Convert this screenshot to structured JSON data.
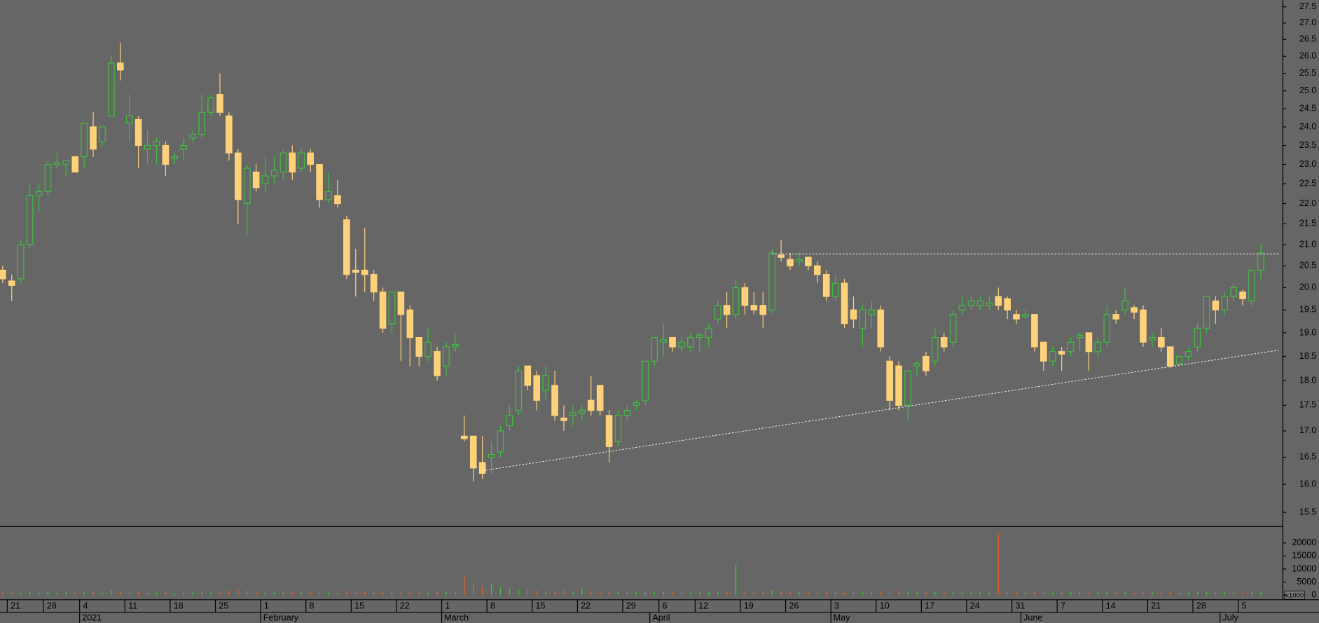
{
  "chart_data": {
    "type": "candlestick",
    "log_scale": true,
    "x": [
      "2020-12-18",
      "2020-12-21",
      "2020-12-22",
      "2020-12-23",
      "2020-12-24",
      "2020-12-28",
      "2020-12-29",
      "2020-12-30",
      "2020-12-31",
      "2021-01-04",
      "2021-01-05",
      "2021-01-06",
      "2021-01-07",
      "2021-01-08",
      "2021-01-11",
      "2021-01-12",
      "2021-01-13",
      "2021-01-14",
      "2021-01-15",
      "2021-01-18",
      "2021-01-19",
      "2021-01-20",
      "2021-01-21",
      "2021-01-22",
      "2021-01-25",
      "2021-01-26",
      "2021-01-27",
      "2021-01-28",
      "2021-01-29",
      "2021-02-01",
      "2021-02-02",
      "2021-02-03",
      "2021-02-04",
      "2021-02-05",
      "2021-02-08",
      "2021-02-09",
      "2021-02-10",
      "2021-02-11",
      "2021-02-12",
      "2021-02-15",
      "2021-02-16",
      "2021-02-17",
      "2021-02-18",
      "2021-02-19",
      "2021-02-22",
      "2021-02-23",
      "2021-02-24",
      "2021-02-25",
      "2021-02-26",
      "2021-03-01",
      "2021-03-02",
      "2021-03-03",
      "2021-03-04",
      "2021-03-05",
      "2021-03-08",
      "2021-03-09",
      "2021-03-10",
      "2021-03-11",
      "2021-03-12",
      "2021-03-15",
      "2021-03-16",
      "2021-03-17",
      "2021-03-18",
      "2021-03-19",
      "2021-03-22",
      "2021-03-23",
      "2021-03-24",
      "2021-03-25",
      "2021-03-26",
      "2021-03-29",
      "2021-03-30",
      "2021-03-31",
      "2021-04-01",
      "2021-04-06",
      "2021-04-07",
      "2021-04-08",
      "2021-04-09",
      "2021-04-12",
      "2021-04-13",
      "2021-04-14",
      "2021-04-15",
      "2021-04-16",
      "2021-04-19",
      "2021-04-20",
      "2021-04-21",
      "2021-04-22",
      "2021-04-23",
      "2021-04-26",
      "2021-04-27",
      "2021-04-28",
      "2021-04-29",
      "2021-04-30",
      "2021-05-03",
      "2021-05-04",
      "2021-05-05",
      "2021-05-06",
      "2021-05-07",
      "2021-05-10",
      "2021-05-11",
      "2021-05-12",
      "2021-05-13",
      "2021-05-14",
      "2021-05-17",
      "2021-05-18",
      "2021-05-19",
      "2021-05-20",
      "2021-05-21",
      "2021-05-24",
      "2021-05-25",
      "2021-05-26",
      "2021-05-27",
      "2021-05-28",
      "2021-05-31",
      "2021-06-01",
      "2021-06-02",
      "2021-06-03",
      "2021-06-04",
      "2021-06-07",
      "2021-06-08",
      "2021-06-09",
      "2021-06-10",
      "2021-06-11",
      "2021-06-14",
      "2021-06-15",
      "2021-06-16",
      "2021-06-17",
      "2021-06-18",
      "2021-06-21",
      "2021-06-22",
      "2021-06-23",
      "2021-06-24",
      "2021-06-25",
      "2021-06-28",
      "2021-06-29",
      "2021-06-30",
      "2021-07-01",
      "2021-07-02",
      "2021-07-05",
      "2021-07-06",
      "2021-07-07"
    ],
    "open": [
      20.4,
      20.15,
      20.2,
      21.0,
      22.2,
      22.3,
      23.0,
      23.0,
      23.2,
      23.2,
      24.0,
      23.6,
      24.3,
      25.8,
      24.1,
      24.2,
      23.4,
      23.5,
      23.5,
      23.15,
      23.4,
      23.7,
      23.8,
      24.4,
      24.9,
      24.3,
      23.3,
      22.0,
      22.8,
      22.5,
      22.7,
      22.8,
      23.3,
      22.9,
      23.3,
      23.0,
      22.1,
      22.2,
      21.6,
      20.4,
      20.4,
      20.3,
      19.9,
      19.2,
      19.9,
      19.5,
      18.9,
      18.5,
      18.6,
      18.3,
      18.7,
      16.9,
      16.9,
      16.4,
      16.5,
      16.6,
      17.1,
      17.4,
      18.3,
      18.1,
      17.8,
      17.9,
      17.25,
      17.3,
      17.35,
      17.6,
      17.9,
      17.3,
      16.8,
      17.3,
      17.5,
      17.6,
      18.4,
      18.8,
      18.9,
      18.7,
      18.7,
      18.9,
      18.9,
      19.3,
      19.6,
      19.4,
      20.0,
      19.6,
      19.6,
      19.5,
      20.75,
      20.65,
      20.6,
      20.7,
      20.5,
      20.3,
      19.8,
      20.1,
      19.5,
      19.1,
      19.4,
      19.5,
      18.4,
      18.3,
      17.5,
      18.3,
      18.5,
      18.4,
      18.9,
      18.8,
      19.5,
      19.6,
      19.6,
      19.6,
      19.8,
      19.75,
      19.4,
      19.35,
      19.4,
      18.8,
      18.4,
      18.6,
      18.6,
      18.9,
      19.0,
      18.6,
      18.8,
      19.4,
      19.5,
      19.55,
      19.5,
      18.85,
      18.9,
      18.7,
      18.35,
      18.5,
      18.7,
      19.1,
      19.7,
      19.5,
      19.8,
      19.9,
      19.7,
      20.4
    ],
    "high": [
      20.5,
      20.3,
      21.1,
      22.5,
      22.5,
      23.1,
      23.3,
      23.1,
      23.2,
      24.1,
      24.4,
      24.0,
      26.0,
      26.4,
      24.9,
      24.3,
      23.9,
      23.7,
      23.6,
      23.3,
      23.7,
      23.9,
      24.9,
      24.9,
      25.5,
      24.4,
      23.4,
      23.0,
      23.0,
      23.2,
      23.2,
      23.4,
      23.5,
      23.4,
      23.4,
      23.0,
      22.8,
      22.6,
      21.7,
      20.9,
      21.4,
      20.4,
      20.0,
      19.9,
      19.9,
      19.6,
      18.9,
      19.1,
      18.7,
      18.8,
      19.0,
      17.3,
      16.9,
      16.9,
      16.8,
      17.1,
      17.5,
      18.3,
      18.3,
      18.2,
      18.3,
      18.2,
      17.5,
      17.5,
      17.5,
      18.1,
      17.9,
      17.4,
      17.4,
      17.5,
      17.6,
      18.4,
      18.9,
      19.2,
      18.9,
      18.9,
      19.0,
      19.0,
      19.2,
      19.7,
      19.9,
      20.2,
      20.1,
      19.9,
      19.9,
      20.9,
      21.1,
      20.8,
      20.8,
      20.7,
      20.6,
      20.4,
      20.3,
      20.2,
      19.8,
      19.6,
      19.7,
      19.6,
      18.5,
      18.4,
      18.2,
      18.4,
      18.6,
      19.1,
      19.0,
      19.5,
      19.8,
      19.8,
      19.8,
      19.8,
      20.0,
      19.8,
      19.5,
      19.5,
      19.4,
      18.8,
      18.7,
      18.7,
      18.9,
      19.0,
      19.0,
      18.9,
      19.6,
      19.5,
      20.0,
      19.6,
      19.6,
      19.0,
      19.1,
      18.7,
      18.5,
      18.7,
      19.2,
      19.8,
      19.8,
      19.9,
      20.1,
      19.95,
      20.4,
      21.0
    ],
    "low": [
      20.1,
      19.7,
      20.1,
      20.9,
      21.8,
      22.2,
      22.9,
      22.7,
      22.8,
      22.9,
      23.2,
      23.5,
      24.3,
      25.3,
      23.6,
      22.9,
      23.0,
      23.0,
      22.7,
      23.0,
      23.1,
      23.6,
      23.7,
      24.3,
      24.3,
      23.1,
      21.5,
      21.2,
      22.3,
      22.3,
      22.5,
      22.6,
      22.6,
      22.8,
      22.8,
      21.9,
      22.0,
      21.9,
      20.2,
      19.8,
      19.9,
      19.7,
      19.0,
      19.0,
      18.4,
      18.3,
      18.3,
      18.4,
      18.0,
      18.1,
      18.6,
      16.8,
      16.05,
      16.1,
      16.2,
      16.5,
      17.0,
      17.3,
      17.8,
      17.4,
      17.6,
      17.2,
      17.0,
      17.1,
      17.2,
      17.3,
      17.3,
      16.4,
      16.7,
      17.2,
      17.4,
      17.5,
      18.3,
      18.5,
      18.6,
      18.6,
      18.6,
      18.6,
      18.7,
      19.2,
      19.1,
      19.3,
      19.4,
      19.4,
      19.1,
      19.4,
      20.6,
      20.4,
      20.5,
      20.4,
      20.1,
      19.7,
      19.7,
      19.1,
      19.1,
      18.7,
      19.1,
      18.6,
      17.4,
      17.4,
      17.2,
      18.1,
      18.1,
      18.3,
      18.6,
      18.7,
      19.4,
      19.5,
      19.5,
      19.5,
      19.5,
      19.3,
      19.2,
      19.3,
      18.6,
      18.2,
      18.3,
      18.2,
      18.5,
      18.6,
      18.2,
      18.5,
      18.7,
      19.2,
      19.4,
      19.3,
      18.7,
      18.7,
      18.6,
      18.25,
      18.3,
      18.4,
      18.6,
      19.0,
      19.2,
      19.4,
      19.7,
      19.6,
      19.6,
      20.2
    ],
    "close": [
      20.2,
      20.05,
      21.0,
      22.2,
      22.3,
      23.0,
      23.05,
      23.1,
      22.8,
      24.1,
      23.4,
      24.0,
      25.8,
      25.6,
      24.3,
      23.5,
      23.5,
      23.6,
      23.0,
      23.2,
      23.5,
      23.8,
      24.4,
      24.8,
      24.4,
      23.3,
      22.1,
      22.9,
      22.4,
      22.7,
      22.85,
      23.3,
      22.8,
      23.3,
      23.0,
      22.1,
      22.3,
      22.0,
      20.3,
      20.35,
      20.3,
      19.9,
      19.1,
      19.9,
      19.4,
      18.9,
      18.5,
      18.8,
      18.1,
      18.7,
      18.75,
      16.85,
      16.3,
      16.2,
      16.55,
      17.0,
      17.3,
      18.2,
      17.9,
      17.6,
      18.1,
      17.3,
      17.2,
      17.35,
      17.4,
      17.4,
      17.4,
      16.7,
      17.3,
      17.4,
      17.55,
      18.4,
      18.9,
      18.85,
      18.7,
      18.8,
      18.9,
      18.95,
      19.1,
      19.6,
      19.4,
      20.0,
      19.6,
      19.5,
      19.4,
      20.8,
      20.7,
      20.5,
      20.65,
      20.5,
      20.3,
      19.8,
      20.1,
      19.2,
      19.3,
      19.5,
      19.5,
      18.7,
      17.6,
      17.5,
      18.2,
      18.35,
      18.2,
      18.9,
      18.7,
      19.4,
      19.6,
      19.7,
      19.7,
      19.65,
      19.6,
      19.5,
      19.3,
      19.4,
      18.7,
      18.4,
      18.6,
      18.55,
      18.8,
      18.95,
      18.6,
      18.8,
      19.4,
      19.3,
      19.7,
      19.45,
      18.8,
      18.9,
      18.7,
      18.3,
      18.5,
      18.6,
      19.1,
      19.8,
      19.5,
      19.8,
      20.0,
      19.75,
      20.4,
      20.8
    ],
    "volume": [
      1000,
      1200,
      800,
      1500,
      1000,
      1300,
      900,
      1100,
      1000,
      1400,
      1200,
      1000,
      1800,
      1500,
      1300,
      1100,
      900,
      1000,
      1200,
      800,
      1000,
      1100,
      1300,
      1200,
      1500,
      1800,
      2200,
      1600,
      1200,
      1000,
      1100,
      1300,
      1400,
      1200,
      1500,
      1300,
      1000,
      900,
      1700,
      1600,
      1400,
      1300,
      1500,
      1200,
      1400,
      1300,
      1100,
      1000,
      1200,
      1300,
      1200,
      7000,
      4000,
      3500,
      4500,
      3000,
      2500,
      2200,
      2000,
      1800,
      1600,
      1500,
      1800,
      1400,
      2500,
      1600,
      1500,
      1700,
      1400,
      1300,
      1200,
      1500,
      1300,
      1400,
      1200,
      1100,
      1000,
      1300,
      1200,
      1400,
      1500,
      12000,
      1600,
      1400,
      1300,
      1800,
      1500,
      1400,
      1200,
      1300,
      1100,
      1200,
      1400,
      1000,
      1300,
      1200,
      1500,
      1600,
      1800,
      1700,
      1500,
      1400,
      1200,
      1300,
      1100,
      1200,
      1000,
      1300,
      1200,
      1100,
      24000,
      1500,
      1400,
      1200,
      1300,
      1100,
      1000,
      1200,
      1300,
      1100,
      1000,
      1200,
      1100,
      1300,
      1400,
      1000,
      1200,
      1100,
      1300,
      1200,
      1000,
      1100,
      1200,
      1300,
      1400,
      1200,
      1100,
      1000,
      1300,
      1400
    ],
    "colors": {
      "up": "#3fbf3f",
      "down": "#ffd27a",
      "volume_up": "#3fbf3f",
      "volume_down": "#d2642a",
      "reference_line": "#ffffff"
    },
    "ylim": [
      15.26,
      27.71
    ],
    "yticks": [
      15.5,
      {
        "value": 16,
        "label": "16.0"
      },
      16.5,
      {
        "value": 17,
        "label": "17.0"
      },
      17.5,
      {
        "value": 18,
        "label": "18.0"
      },
      18.5,
      {
        "value": 19,
        "label": "19.0"
      },
      19.5,
      {
        "value": 20,
        "label": "20.0"
      },
      20.5,
      {
        "value": 21,
        "label": "21.0"
      },
      21.5,
      {
        "value": 22,
        "label": "22.0"
      },
      22.5,
      {
        "value": 23,
        "label": "23.0"
      },
      23.5,
      {
        "value": 24,
        "label": "24.0"
      },
      24.5,
      {
        "value": 25,
        "label": "25.0"
      },
      25.5,
      {
        "value": 26,
        "label": "26.0"
      },
      26.5,
      {
        "value": 27,
        "label": "27.0"
      },
      27.5
    ],
    "volume_ylim": [
      0,
      25800
    ],
    "volume_yticks": [
      0,
      5000,
      10000,
      15000,
      20000
    ],
    "volume_unit": "x1000",
    "xticks": [
      {
        "value": "2020-12-21",
        "label": "21"
      },
      {
        "value": "2020-12-28",
        "label": "28"
      },
      {
        "value": "2021-01-04",
        "label": "4"
      },
      {
        "value": "2021-01-11",
        "label": "11"
      },
      {
        "value": "2021-01-18",
        "label": "18"
      },
      {
        "value": "2021-01-25",
        "label": "25"
      },
      {
        "value": "2021-02-01",
        "label": "1"
      },
      {
        "value": "2021-02-08",
        "label": "8"
      },
      {
        "value": "2021-02-15",
        "label": "15"
      },
      {
        "value": "2021-02-22",
        "label": "22"
      },
      {
        "value": "2021-03-01",
        "label": "1"
      },
      {
        "value": "2021-03-08",
        "label": "8"
      },
      {
        "value": "2021-03-15",
        "label": "15"
      },
      {
        "value": "2021-03-22",
        "label": "22"
      },
      {
        "value": "2021-03-29",
        "label": "29"
      },
      {
        "value": "2021-04-06",
        "label": "6"
      },
      {
        "value": "2021-04-12",
        "label": "12"
      },
      {
        "value": "2021-04-19",
        "label": "19"
      },
      {
        "value": "2021-04-26",
        "label": "26"
      },
      {
        "value": "2021-05-03",
        "label": "3"
      },
      {
        "value": "2021-05-10",
        "label": "10"
      },
      {
        "value": "2021-05-17",
        "label": "17"
      },
      {
        "value": "2021-05-24",
        "label": "24"
      },
      {
        "value": "2021-05-31",
        "label": "31"
      },
      {
        "value": "2021-06-07",
        "label": "7"
      },
      {
        "value": "2021-06-14",
        "label": "14"
      },
      {
        "value": "2021-06-21",
        "label": "21"
      },
      {
        "value": "2021-06-28",
        "label": "28"
      },
      {
        "value": "2021-07-05",
        "label": "5"
      }
    ],
    "month_labels": [
      {
        "value": "2021-01-04",
        "label": "2021"
      },
      {
        "value": "2021-02-01",
        "label": "February"
      },
      {
        "value": "2021-03-01",
        "label": "March"
      },
      {
        "value": "2021-04-01",
        "label": "April"
      },
      {
        "value": "2021-05-03",
        "label": "May"
      },
      {
        "value": "2021-06-01",
        "label": "June"
      },
      {
        "value": "2021-07-01",
        "label": "July"
      }
    ],
    "reference_lines": [
      {
        "x": "2021-04-22",
        "values": [
          20.78,
          20.78
        ]
      },
      {
        "x": "2021-03-05",
        "values": [
          16.25,
          18.63
        ]
      }
    ]
  }
}
